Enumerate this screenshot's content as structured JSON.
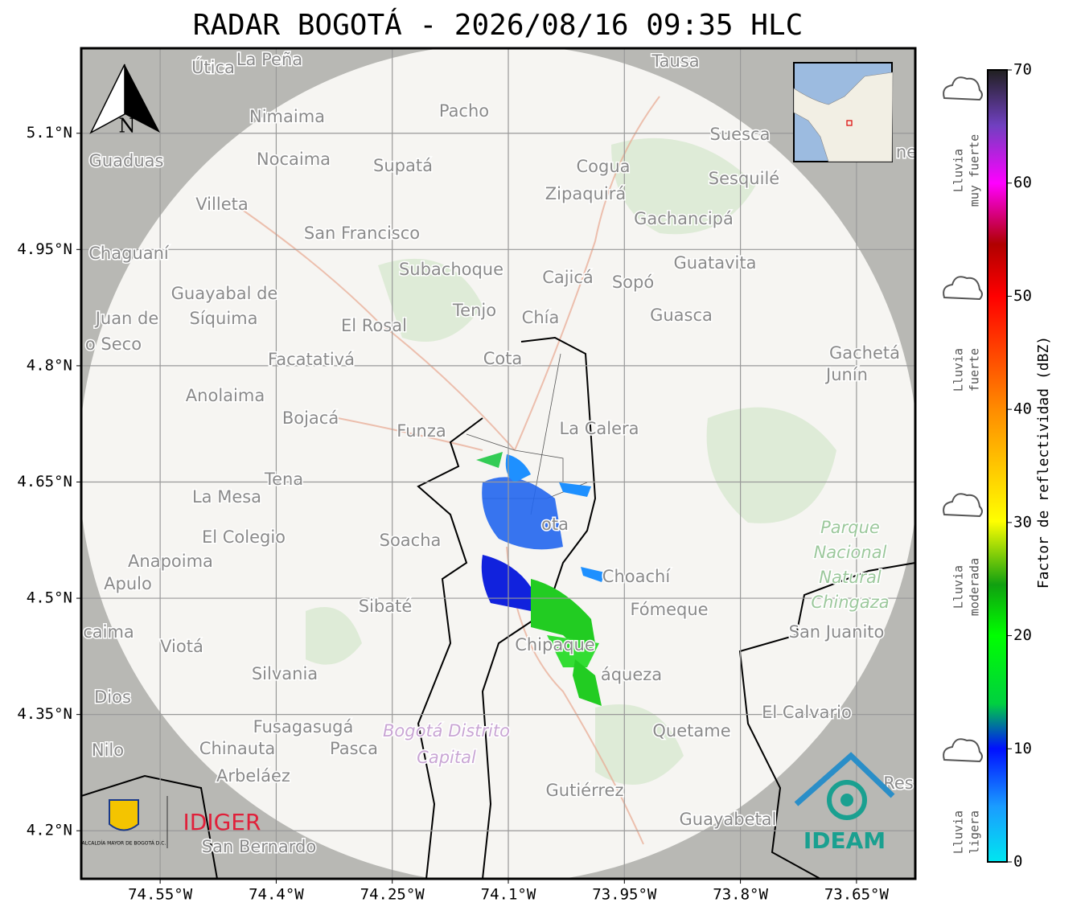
{
  "title": "RADAR BOGOTÁ - 2026/08/16 09:35 HLC",
  "map": {
    "xlim": [
      -74.652,
      -73.574
    ],
    "ylim": [
      4.138,
      5.2097
    ],
    "xticks": [
      {
        "value": -74.55,
        "label": "74.55°W"
      },
      {
        "value": -74.4,
        "label": "74.4°W"
      },
      {
        "value": -74.25,
        "label": "74.25°W"
      },
      {
        "value": -74.1,
        "label": "74.1°W"
      },
      {
        "value": -73.95,
        "label": "73.95°W"
      },
      {
        "value": -73.8,
        "label": "73.8°W"
      },
      {
        "value": -73.65,
        "label": "73.65°W"
      }
    ],
    "yticks": [
      {
        "value": 5.1,
        "label": "5.1°N"
      },
      {
        "value": 4.95,
        "label": "4.95°N"
      },
      {
        "value": 4.8,
        "label": "4.8°N"
      },
      {
        "value": 4.65,
        "label": "4.65°N"
      },
      {
        "value": 4.5,
        "label": "4.5°N"
      },
      {
        "value": 4.35,
        "label": "4.35°N"
      },
      {
        "value": 4.2,
        "label": "4.2°N"
      }
    ],
    "north": "N",
    "places": [
      "Útica",
      "La Peña",
      "Tausa",
      "Pacho",
      "Nimaima",
      "Suesca",
      "Guaduas",
      "Nocaima",
      "Supatá",
      "Cogua",
      "Sesquilé",
      "Zipaquirá",
      "Villeta",
      "Gachancipá",
      "San Francisco",
      "Chaguaní",
      "Guatavita",
      "Subachoque",
      "Cajicá",
      "Sopó",
      "Guayabal de",
      "Síquima",
      "Juan de",
      "Tenjo",
      "Chía",
      "Guasca",
      "El Rosal",
      "o Seco",
      "Facatativá",
      "Gachetá",
      "Junín",
      "Cota",
      "Anolaima",
      "Bojacá",
      "Funza",
      "La Calera",
      "Tena",
      "La Mesa",
      "El Colegio",
      "Soacha",
      "ota",
      "Anapoima",
      "Apulo",
      "Choachí",
      "Sibaté",
      "Fómeque",
      "San Juanito",
      "caima",
      "Viotá",
      "Chipaque",
      "Silvania",
      "áqueza",
      "Dios",
      "El Calvario",
      "Fusagasugá",
      "Quetame",
      "Nilo",
      "Chinauta",
      "Pasca",
      "Arbeláez",
      "Gutiérrez",
      "Guayabetal",
      "San Bernardo",
      "Res",
      "ne"
    ],
    "park": [
      "Parque",
      "Nacional",
      "Natural",
      "Chingaza"
    ],
    "district": [
      "Bogotá Distrito",
      "Capital"
    ]
  },
  "logos": {
    "alcaldia": "ALCALDÍA MAYOR DE BOGOTÁ D.C.",
    "idiger": "IDIGER",
    "ideam": "IDEAM"
  },
  "colorbar": {
    "lim": [
      0,
      70
    ],
    "ticks": [
      0,
      10,
      20,
      30,
      40,
      50,
      60,
      70
    ],
    "label": "Factor de reflectividad (dBZ)"
  },
  "rain": [
    [
      "Lluvia",
      "muy fuerte"
    ],
    [
      "Lluvia",
      "fuerte"
    ],
    [
      "Lluvia",
      "moderada"
    ],
    [
      "Lluvia",
      "ligera"
    ]
  ]
}
